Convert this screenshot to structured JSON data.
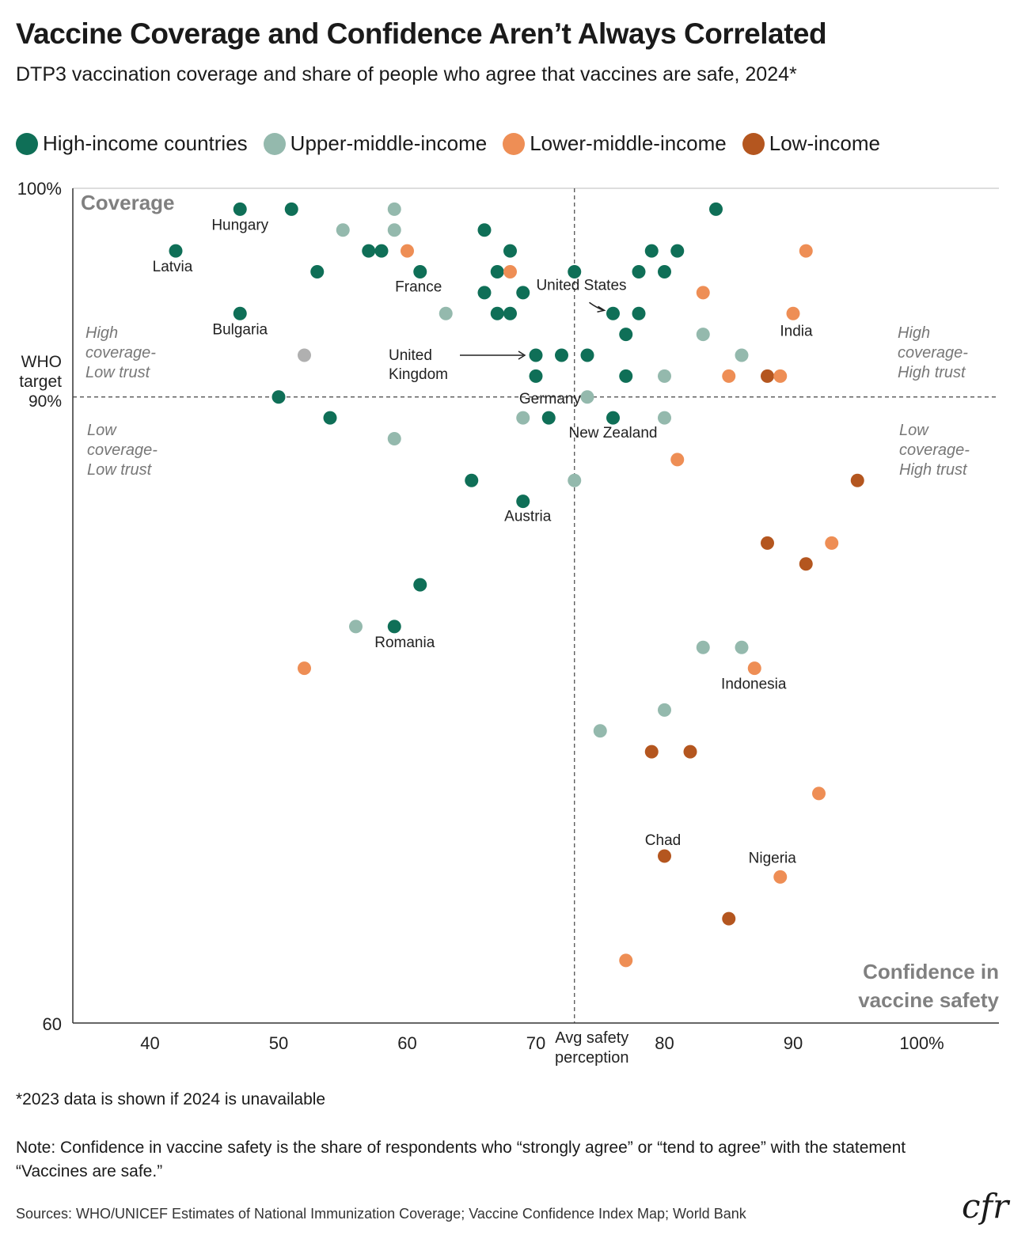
{
  "title": "Vaccine Coverage and Confidence Aren’t Always Correlated",
  "subtitle": "DTP3 vaccination coverage and share of people who agree that vaccines are safe, 2024*",
  "colors": {
    "high": "#0f6f57",
    "upper_middle": "#94b9ad",
    "lower_middle": "#ee8e55",
    "low": "#b4561f",
    "other": "#b0b0b0",
    "axis": "#333333",
    "quadrant_text": "#777777"
  },
  "legend": [
    {
      "label": "High-income countries",
      "group": "high"
    },
    {
      "label": "Upper-middle-income",
      "group": "upper_middle"
    },
    {
      "label": "Lower-middle-income",
      "group": "lower_middle"
    },
    {
      "label": "Low-income",
      "group": "low"
    }
  ],
  "chart_data": {
    "type": "scatter",
    "xlabel": "Confidence in vaccine safety",
    "ylabel": "Coverage",
    "xlim": [
      34,
      106
    ],
    "ylim": [
      60,
      100
    ],
    "x_ticks": [
      "40",
      "50",
      "60",
      "70",
      "80",
      "90",
      "100%"
    ],
    "y_tick_top": "100%",
    "y_tick_bottom": "60",
    "who_target": {
      "value": 90,
      "label": [
        "WHO",
        "target",
        "90%"
      ]
    },
    "avg_safety_perception": {
      "value": 73,
      "label": [
        "Avg safety",
        "perception"
      ]
    },
    "quadrants": {
      "top_left": [
        "High",
        "coverage-",
        "Low trust"
      ],
      "top_right": [
        "High",
        "coverage-",
        "High trust"
      ],
      "bottom_left": [
        "Low",
        "coverage-",
        "Low trust"
      ],
      "bottom_right": [
        "Low",
        "coverage-",
        "High trust"
      ]
    },
    "points": [
      {
        "x": 47,
        "y": 99,
        "group": "high",
        "label": "Hungary"
      },
      {
        "x": 51,
        "y": 99,
        "group": "high"
      },
      {
        "x": 42,
        "y": 97,
        "group": "high",
        "label": "Latvia"
      },
      {
        "x": 59,
        "y": 99,
        "group": "upper_middle"
      },
      {
        "x": 55,
        "y": 98,
        "group": "upper_middle"
      },
      {
        "x": 59,
        "y": 98,
        "group": "upper_middle"
      },
      {
        "x": 57,
        "y": 97,
        "group": "high"
      },
      {
        "x": 58,
        "y": 97,
        "group": "high"
      },
      {
        "x": 60,
        "y": 97,
        "group": "lower_middle"
      },
      {
        "x": 53,
        "y": 96,
        "group": "high"
      },
      {
        "x": 61,
        "y": 96,
        "group": "high",
        "label": "France"
      },
      {
        "x": 66,
        "y": 98,
        "group": "high"
      },
      {
        "x": 68,
        "y": 97,
        "group": "high"
      },
      {
        "x": 67,
        "y": 96,
        "group": "high"
      },
      {
        "x": 68,
        "y": 96,
        "group": "lower_middle"
      },
      {
        "x": 66,
        "y": 95,
        "group": "high"
      },
      {
        "x": 69,
        "y": 95,
        "group": "high"
      },
      {
        "x": 67,
        "y": 94,
        "group": "high"
      },
      {
        "x": 68,
        "y": 94,
        "group": "high"
      },
      {
        "x": 63,
        "y": 94,
        "group": "upper_middle"
      },
      {
        "x": 47,
        "y": 94,
        "group": "high",
        "label": "Bulgaria"
      },
      {
        "x": 52,
        "y": 92,
        "group": "other"
      },
      {
        "x": 73,
        "y": 96,
        "group": "high"
      },
      {
        "x": 76,
        "y": 94,
        "group": "high",
        "label": "United States"
      },
      {
        "x": 78,
        "y": 94,
        "group": "high"
      },
      {
        "x": 77,
        "y": 93,
        "group": "high"
      },
      {
        "x": 79,
        "y": 97,
        "group": "high"
      },
      {
        "x": 81,
        "y": 97,
        "group": "high"
      },
      {
        "x": 78,
        "y": 96,
        "group": "high"
      },
      {
        "x": 80,
        "y": 96,
        "group": "high"
      },
      {
        "x": 84,
        "y": 99,
        "group": "high"
      },
      {
        "x": 91,
        "y": 97,
        "group": "lower_middle"
      },
      {
        "x": 83,
        "y": 95,
        "group": "lower_middle"
      },
      {
        "x": 90,
        "y": 94,
        "group": "lower_middle",
        "label": "India"
      },
      {
        "x": 83,
        "y": 93,
        "group": "upper_middle"
      },
      {
        "x": 86,
        "y": 92,
        "group": "upper_middle"
      },
      {
        "x": 70,
        "y": 92,
        "group": "high",
        "label": "United Kingdom"
      },
      {
        "x": 72,
        "y": 92,
        "group": "high"
      },
      {
        "x": 74,
        "y": 92,
        "group": "high"
      },
      {
        "x": 70,
        "y": 91,
        "group": "high"
      },
      {
        "x": 77,
        "y": 91,
        "group": "high"
      },
      {
        "x": 80,
        "y": 91,
        "group": "upper_middle"
      },
      {
        "x": 85,
        "y": 91,
        "group": "lower_middle"
      },
      {
        "x": 88,
        "y": 91,
        "group": "low"
      },
      {
        "x": 89,
        "y": 91,
        "group": "lower_middle"
      },
      {
        "x": 74,
        "y": 90,
        "group": "upper_middle",
        "label": "Germany"
      },
      {
        "x": 50,
        "y": 90,
        "group": "high"
      },
      {
        "x": 54,
        "y": 89,
        "group": "high"
      },
      {
        "x": 59,
        "y": 88,
        "group": "upper_middle"
      },
      {
        "x": 69,
        "y": 89,
        "group": "upper_middle"
      },
      {
        "x": 71,
        "y": 89,
        "group": "high"
      },
      {
        "x": 76,
        "y": 89,
        "group": "high",
        "label": "New Zealand"
      },
      {
        "x": 80,
        "y": 89,
        "group": "upper_middle"
      },
      {
        "x": 81,
        "y": 87,
        "group": "lower_middle"
      },
      {
        "x": 65,
        "y": 86,
        "group": "high"
      },
      {
        "x": 73,
        "y": 86,
        "group": "upper_middle"
      },
      {
        "x": 69,
        "y": 85,
        "group": "high",
        "label": "Austria"
      },
      {
        "x": 95,
        "y": 86,
        "group": "low"
      },
      {
        "x": 88,
        "y": 83,
        "group": "low"
      },
      {
        "x": 93,
        "y": 83,
        "group": "lower_middle"
      },
      {
        "x": 91,
        "y": 82,
        "group": "low"
      },
      {
        "x": 61,
        "y": 81,
        "group": "high"
      },
      {
        "x": 56,
        "y": 79,
        "group": "upper_middle"
      },
      {
        "x": 59,
        "y": 79,
        "group": "high",
        "label": "Romania"
      },
      {
        "x": 52,
        "y": 77,
        "group": "lower_middle"
      },
      {
        "x": 83,
        "y": 78,
        "group": "upper_middle"
      },
      {
        "x": 86,
        "y": 78,
        "group": "upper_middle"
      },
      {
        "x": 87,
        "y": 77,
        "group": "lower_middle",
        "label": "Indonesia"
      },
      {
        "x": 80,
        "y": 75,
        "group": "upper_middle"
      },
      {
        "x": 75,
        "y": 74,
        "group": "upper_middle"
      },
      {
        "x": 79,
        "y": 73,
        "group": "low"
      },
      {
        "x": 82,
        "y": 73,
        "group": "low"
      },
      {
        "x": 92,
        "y": 71,
        "group": "lower_middle"
      },
      {
        "x": 80,
        "y": 68,
        "group": "low",
        "label": "Chad"
      },
      {
        "x": 89,
        "y": 67,
        "group": "lower_middle",
        "label": "Nigeria"
      },
      {
        "x": 85,
        "y": 65,
        "group": "low"
      },
      {
        "x": 77,
        "y": 63,
        "group": "lower_middle"
      }
    ]
  },
  "footnote": "*2023 data is shown if 2024 is unavailable",
  "note": "Note: Confidence in vaccine safety is the share of respondents who “strongly agree” or “tend to agree” with the statement “Vaccines are safe.”",
  "sources": "Sources: WHO/UNICEF Estimates of National Immunization Coverage; Vaccine Confidence Index Map; World Bank",
  "logo_text": "cfr"
}
